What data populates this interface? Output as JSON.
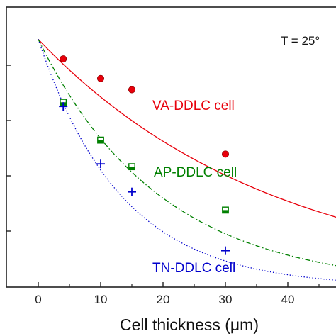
{
  "chart_data": {
    "type": "scatter",
    "xlabel": "Cell thickness (μm)",
    "xticks": [
      "0",
      "10",
      "20",
      "30",
      "40"
    ],
    "xlim": [
      -5,
      47
    ],
    "ylim": [
      0,
      1
    ],
    "temperature_label": "T = 25°",
    "series": [
      {
        "name": "VA-DDLC cell",
        "color": "#e8000b",
        "marker": "sphere",
        "line": "solid",
        "points": [
          {
            "x": 4,
            "y": 0.815
          },
          {
            "x": 10,
            "y": 0.745
          },
          {
            "x": 15,
            "y": 0.705
          },
          {
            "x": 30,
            "y": 0.475
          }
        ],
        "fit": {
          "y0": 0.885,
          "k": 0.0265
        }
      },
      {
        "name": "AP-DDLC cell",
        "color": "#008000",
        "marker": "square",
        "line": "dashdot",
        "points": [
          {
            "x": 4,
            "y": 0.66
          },
          {
            "x": 10,
            "y": 0.525
          },
          {
            "x": 15,
            "y": 0.43
          },
          {
            "x": 30,
            "y": 0.275
          }
        ],
        "fit": {
          "y0": 0.885,
          "k": 0.0512
        }
      },
      {
        "name": "TN-DDLC cell",
        "color": "#0000cc",
        "marker": "plus",
        "line": "dotted",
        "points": [
          {
            "x": 4,
            "y": 0.645
          },
          {
            "x": 10,
            "y": 0.44
          },
          {
            "x": 15,
            "y": 0.34
          },
          {
            "x": 30,
            "y": 0.13
          }
        ],
        "fit": {
          "y0": 0.885,
          "k": 0.075
        }
      }
    ]
  }
}
